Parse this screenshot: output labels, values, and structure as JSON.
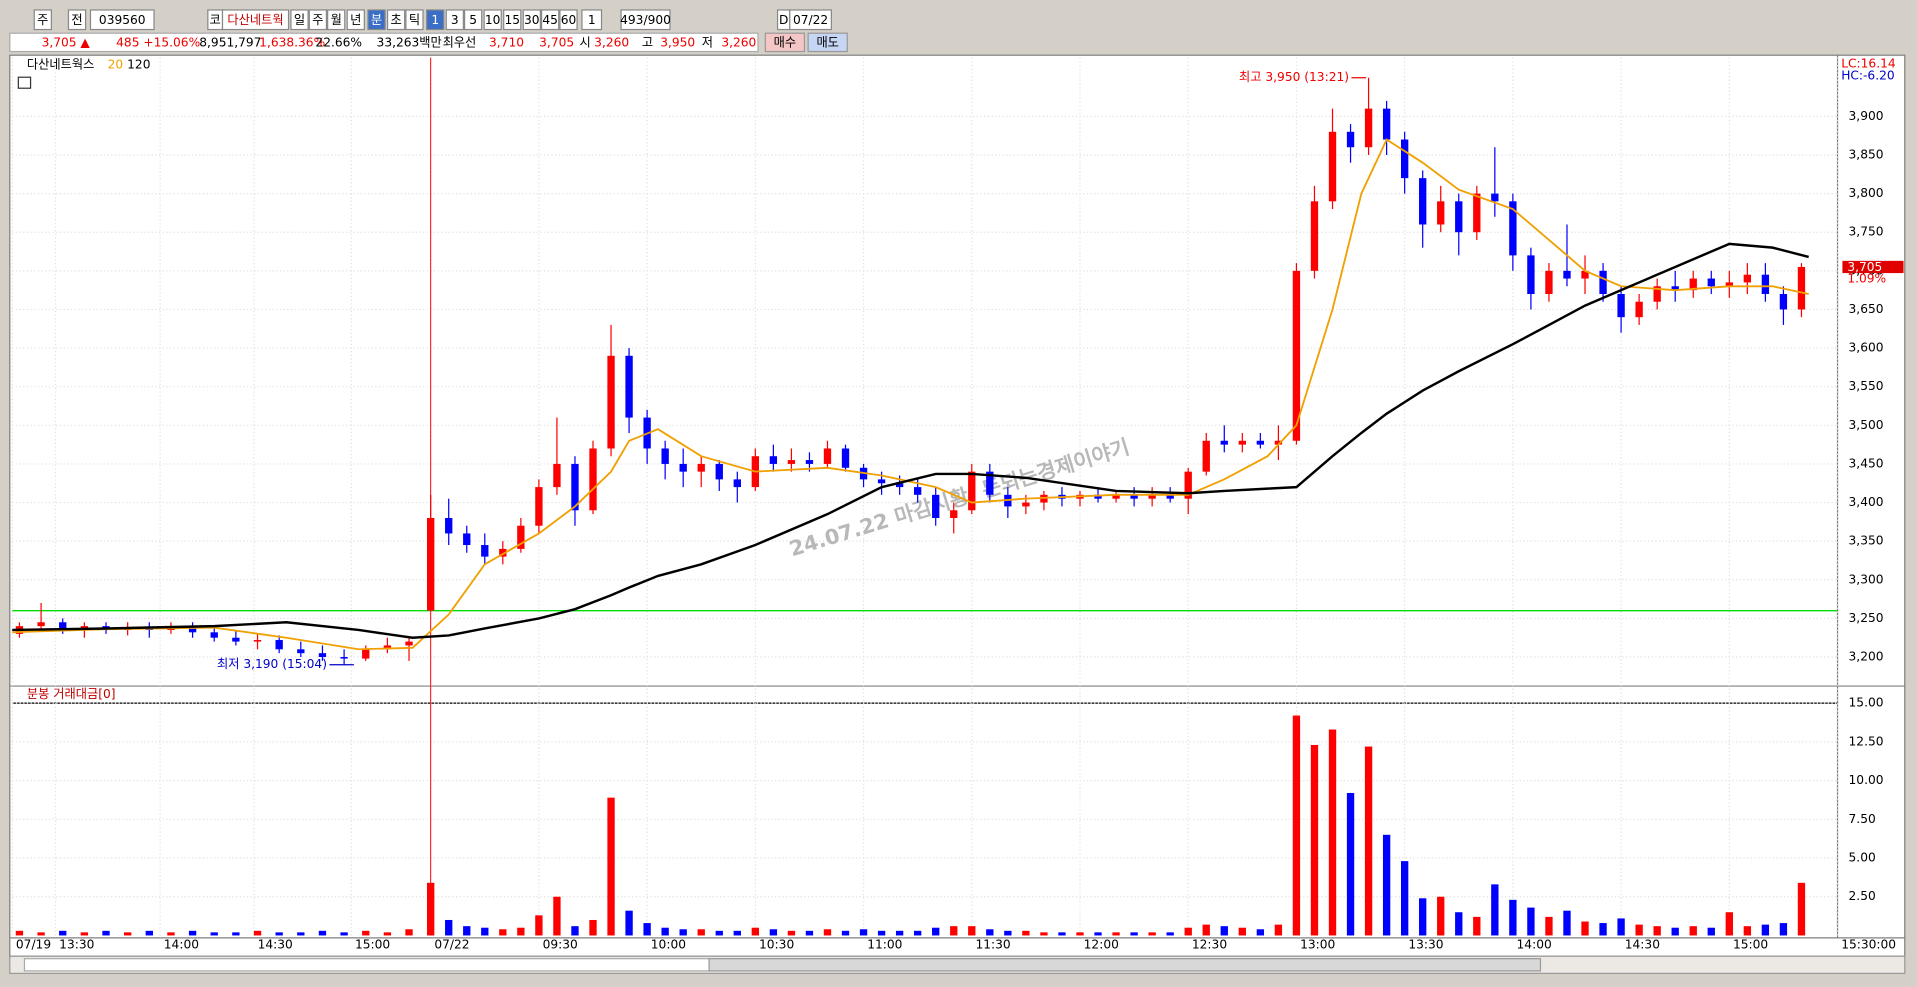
{
  "toolbar": {
    "items": [
      "주",
      "전",
      "039560",
      "코",
      "다산네트웍",
      "일",
      "주",
      "월",
      "년",
      "분",
      "초",
      "틱",
      "1",
      "3",
      "5",
      "10",
      "15",
      "30",
      "45",
      "60",
      "1",
      "493/900",
      "D",
      "07/22"
    ]
  },
  "info": {
    "items": [
      "3,705 ▲",
      "485 +15.06%",
      "8,951,797",
      "1,638.36%",
      "22.66%",
      "33,263백만",
      "최우선",
      "3,710",
      "3,705",
      "시",
      "3,260",
      "고",
      "3,950",
      "저",
      "3,260"
    ],
    "buy": "매수",
    "sell": "매도"
  },
  "chart_data": [
    {
      "type": "candlestick",
      "name": "다산네트웍스",
      "up_color": "#ff0000",
      "down_color": "#0000ff",
      "x": [
        -114,
        -108,
        -102,
        -96,
        -90,
        -84,
        -78,
        -72,
        -66,
        -60,
        -54,
        -48,
        -42,
        -36,
        -30,
        -24,
        -18,
        -12,
        -6,
        0,
        5,
        10,
        15,
        20,
        25,
        30,
        35,
        40,
        45,
        50,
        55,
        60,
        65,
        70,
        75,
        80,
        85,
        90,
        95,
        100,
        105,
        110,
        115,
        120,
        125,
        130,
        135,
        140,
        145,
        150,
        155,
        160,
        165,
        170,
        175,
        180,
        185,
        190,
        195,
        200,
        205,
        210,
        215,
        220,
        225,
        230,
        235,
        240,
        245,
        250,
        255,
        260,
        265,
        270,
        275,
        280,
        285,
        290,
        295,
        300,
        305,
        310,
        315,
        320,
        325,
        330,
        335,
        340,
        345,
        350,
        355,
        360,
        365,
        370,
        375,
        380
      ],
      "open": [
        3230,
        3240,
        3245,
        3235,
        3240,
        3235,
        3238,
        3235,
        3240,
        3232,
        3225,
        3220,
        3222,
        3210,
        3205,
        3200,
        3198,
        3210,
        3215,
        3260,
        3380,
        3360,
        3345,
        3330,
        3340,
        3370,
        3420,
        3450,
        3390,
        3470,
        3590,
        3510,
        3470,
        3450,
        3440,
        3450,
        3430,
        3420,
        3460,
        3450,
        3455,
        3450,
        3470,
        3445,
        3430,
        3425,
        3420,
        3410,
        3380,
        3390,
        3440,
        3410,
        3395,
        3400,
        3410,
        3405,
        3410,
        3405,
        3410,
        3405,
        3410,
        3405,
        3440,
        3480,
        3475,
        3480,
        3475,
        3480,
        3700,
        3790,
        3880,
        3860,
        3910,
        3870,
        3820,
        3760,
        3790,
        3750,
        3800,
        3790,
        3720,
        3670,
        3700,
        3690,
        3700,
        3670,
        3640,
        3660,
        3680,
        3675,
        3690,
        3680,
        3685,
        3695,
        3670,
        3650
      ],
      "high": [
        3245,
        3270,
        3250,
        3245,
        3245,
        3245,
        3245,
        3245,
        3245,
        3240,
        3235,
        3230,
        3228,
        3220,
        3215,
        3210,
        3215,
        3225,
        3225,
        3410,
        3405,
        3370,
        3360,
        3350,
        3380,
        3430,
        3510,
        3460,
        3480,
        3630,
        3600,
        3520,
        3480,
        3470,
        3460,
        3455,
        3440,
        3470,
        3475,
        3470,
        3465,
        3480,
        3475,
        3450,
        3440,
        3435,
        3430,
        3420,
        3400,
        3450,
        3450,
        3420,
        3410,
        3415,
        3420,
        3415,
        3420,
        3415,
        3420,
        3420,
        3420,
        3445,
        3490,
        3500,
        3490,
        3490,
        3500,
        3710,
        3810,
        3910,
        3890,
        3950,
        3920,
        3880,
        3830,
        3810,
        3800,
        3810,
        3860,
        3800,
        3730,
        3710,
        3760,
        3720,
        3710,
        3680,
        3670,
        3690,
        3700,
        3700,
        3700,
        3700,
        3710,
        3710,
        3680,
        3710
      ],
      "low": [
        3225,
        3235,
        3230,
        3225,
        3230,
        3228,
        3225,
        3230,
        3225,
        3220,
        3215,
        3210,
        3205,
        3200,
        3195,
        3190,
        3195,
        3205,
        3195,
        3260,
        3345,
        3335,
        3320,
        3320,
        3335,
        3360,
        3410,
        3370,
        3385,
        3460,
        3490,
        3450,
        3430,
        3420,
        3420,
        3415,
        3400,
        3415,
        3440,
        3440,
        3440,
        3445,
        3440,
        3420,
        3410,
        3410,
        3400,
        3370,
        3360,
        3385,
        3400,
        3380,
        3385,
        3390,
        3395,
        3395,
        3400,
        3400,
        3395,
        3395,
        3400,
        3385,
        3435,
        3465,
        3465,
        3470,
        3455,
        3475,
        3690,
        3780,
        3840,
        3850,
        3850,
        3800,
        3730,
        3750,
        3720,
        3740,
        3770,
        3700,
        3650,
        3660,
        3680,
        3670,
        3660,
        3620,
        3630,
        3650,
        3660,
        3665,
        3670,
        3665,
        3670,
        3660,
        3630,
        3640
      ],
      "close": [
        3240,
        3245,
        3235,
        3240,
        3235,
        3238,
        3235,
        3240,
        3232,
        3225,
        3220,
        3222,
        3210,
        3205,
        3200,
        3198,
        3210,
        3215,
        3220,
        3380,
        3360,
        3345,
        3330,
        3340,
        3370,
        3420,
        3450,
        3390,
        3470,
        3590,
        3510,
        3470,
        3450,
        3440,
        3450,
        3430,
        3420,
        3460,
        3450,
        3455,
        3450,
        3470,
        3445,
        3430,
        3425,
        3420,
        3410,
        3380,
        3390,
        3440,
        3410,
        3395,
        3400,
        3410,
        3405,
        3410,
        3405,
        3410,
        3405,
        3410,
        3405,
        3440,
        3480,
        3475,
        3480,
        3475,
        3480,
        3700,
        3790,
        3880,
        3860,
        3910,
        3870,
        3820,
        3760,
        3790,
        3750,
        3800,
        3790,
        3720,
        3670,
        3700,
        3690,
        3700,
        3670,
        3640,
        3660,
        3680,
        3675,
        3690,
        3680,
        3685,
        3695,
        3670,
        3650,
        3705
      ],
      "ma": {
        "x": [
          -116,
          -90,
          -60,
          -40,
          -20,
          -5,
          5,
          15,
          30,
          40,
          50,
          55,
          63,
          75,
          90,
          110,
          125,
          140,
          150,
          165,
          190,
          210,
          220,
          232,
          240,
          250,
          258,
          265,
          275,
          285,
          300,
          310,
          320,
          330,
          345,
          360,
          372,
          382
        ],
        "series": [
          {
            "name": "20",
            "color": "#f0a000",
            "values": [
              3232,
              3236,
              3238,
              3225,
              3210,
              3212,
              3255,
              3320,
              3360,
              3395,
              3440,
              3480,
              3495,
              3460,
              3440,
              3445,
              3435,
              3420,
              3400,
              3405,
              3410,
              3410,
              3430,
              3460,
              3500,
              3650,
              3800,
              3870,
              3840,
              3805,
              3780,
              3740,
              3700,
              3680,
              3675,
              3680,
              3680,
              3670
            ]
          },
          {
            "name": "120",
            "color": "#000000",
            "values": [
              3235,
              3237,
              3240,
              3245,
              3235,
              3225,
              3228,
              3237,
              3250,
              3262,
              3280,
              3290,
              3305,
              3320,
              3345,
              3385,
              3420,
              3437,
              3437,
              3432,
              3415,
              3412,
              3415,
              3418,
              3420,
              3460,
              3490,
              3515,
              3545,
              3570,
              3605,
              3630,
              3655,
              3675,
              3705,
              3735,
              3730,
              3718
            ]
          }
        ]
      },
      "reference_lines": {
        "y": 3260,
        "y_color": "#00dd00",
        "x": 0,
        "x_color": "#ff0000"
      },
      "high_label": "최고 3,950 (13:21)",
      "low_label": "최저 3,190 (15:04)",
      "last_price_label": "3,705",
      "change_label": "1.09%",
      "lc_label": "LC:16.14",
      "hc_label": "HC:-6.20",
      "watermark": "24.07.22 마감시황, 돈되는경제이야기",
      "xlim": [
        -116,
        390
      ],
      "ylim": [
        3164,
        3976
      ],
      "grid": true,
      "yticks": [
        {
          "value": 3200,
          "label": "3,200"
        },
        {
          "value": 3250,
          "label": "3,250"
        },
        {
          "value": 3300,
          "label": "3,300"
        },
        {
          "value": 3350,
          "label": "3,350"
        },
        {
          "value": 3400,
          "label": "3,400"
        },
        {
          "value": 3450,
          "label": "3,450"
        },
        {
          "value": 3500,
          "label": "3,500"
        },
        {
          "value": 3550,
          "label": "3,550"
        },
        {
          "value": 3600,
          "label": "3,600"
        },
        {
          "value": 3650,
          "label": "3,650"
        },
        {
          "value": 3700,
          "label": "3,700"
        },
        {
          "value": 3750,
          "label": "3,750"
        },
        {
          "value": 3800,
          "label": "3,800"
        },
        {
          "value": 3850,
          "label": "3,850"
        },
        {
          "value": 3900,
          "label": "3,900"
        }
      ]
    },
    {
      "type": "bar",
      "title": "분봉 거래대금[0]",
      "x": [
        -114,
        -108,
        -102,
        -96,
        -90,
        -84,
        -78,
        -72,
        -66,
        -60,
        -54,
        -48,
        -42,
        -36,
        -30,
        -24,
        -18,
        -12,
        -6,
        0,
        5,
        10,
        15,
        20,
        25,
        30,
        35,
        40,
        45,
        50,
        55,
        60,
        65,
        70,
        75,
        80,
        85,
        90,
        95,
        100,
        105,
        110,
        115,
        120,
        125,
        130,
        135,
        140,
        145,
        150,
        155,
        160,
        165,
        170,
        175,
        180,
        185,
        190,
        195,
        200,
        205,
        210,
        215,
        220,
        225,
        230,
        235,
        240,
        245,
        250,
        255,
        260,
        265,
        270,
        275,
        280,
        285,
        290,
        295,
        300,
        305,
        310,
        315,
        320,
        325,
        330,
        335,
        340,
        345,
        350,
        355,
        360,
        365,
        370,
        375,
        380
      ],
      "values": [
        0.3,
        0.2,
        0.3,
        0.2,
        0.3,
        0.2,
        0.3,
        0.2,
        0.3,
        0.2,
        0.2,
        0.3,
        0.2,
        0.2,
        0.3,
        0.2,
        0.3,
        0.2,
        0.4,
        3.4,
        1.0,
        0.6,
        0.5,
        0.4,
        0.5,
        1.3,
        2.5,
        0.6,
        1.0,
        8.9,
        1.6,
        0.8,
        0.5,
        0.4,
        0.4,
        0.3,
        0.3,
        0.5,
        0.4,
        0.3,
        0.3,
        0.4,
        0.3,
        0.4,
        0.3,
        0.3,
        0.3,
        0.5,
        0.6,
        0.6,
        0.4,
        0.3,
        0.3,
        0.2,
        0.2,
        0.2,
        0.2,
        0.2,
        0.2,
        0.2,
        0.2,
        0.5,
        0.7,
        0.6,
        0.5,
        0.4,
        0.7,
        14.2,
        12.3,
        13.3,
        9.2,
        12.2,
        6.5,
        4.8,
        2.4,
        2.5,
        1.5,
        1.2,
        3.3,
        2.3,
        1.8,
        1.2,
        1.6,
        0.9,
        0.8,
        1.1,
        0.7,
        0.6,
        0.5,
        0.6,
        0.5,
        1.5,
        0.6,
        0.7,
        0.8,
        3.4
      ],
      "xlim": [
        -116,
        390
      ],
      "ylim": [
        0,
        15
      ],
      "yticks": [
        {
          "value": 2.5,
          "label": "2.50"
        },
        {
          "value": 5,
          "label": "5.00"
        },
        {
          "value": 7.5,
          "label": "7.50"
        },
        {
          "value": 10,
          "label": "10.00"
        },
        {
          "value": 12.5,
          "label": "12.50"
        },
        {
          "value": 15,
          "label": "15.00"
        }
      ],
      "xticks": [
        {
          "value": -116,
          "label": "07/19"
        },
        {
          "value": -104,
          "label": "13:30"
        },
        {
          "value": -75,
          "label": "14:00"
        },
        {
          "value": -49,
          "label": "14:30"
        },
        {
          "value": -22,
          "label": "15:00"
        },
        {
          "value": 0,
          "label": "07/22"
        },
        {
          "value": 30,
          "label": "09:30"
        },
        {
          "value": 60,
          "label": "10:00"
        },
        {
          "value": 90,
          "label": "10:30"
        },
        {
          "value": 120,
          "label": "11:00"
        },
        {
          "value": 150,
          "label": "11:30"
        },
        {
          "value": 180,
          "label": "12:00"
        },
        {
          "value": 210,
          "label": "12:30"
        },
        {
          "value": 240,
          "label": "13:00"
        },
        {
          "value": 270,
          "label": "13:30"
        },
        {
          "value": 300,
          "label": "14:00"
        },
        {
          "value": 330,
          "label": "14:30"
        },
        {
          "value": 360,
          "label": "15:00"
        },
        {
          "value": 390,
          "label": "15:30:00"
        }
      ]
    }
  ]
}
